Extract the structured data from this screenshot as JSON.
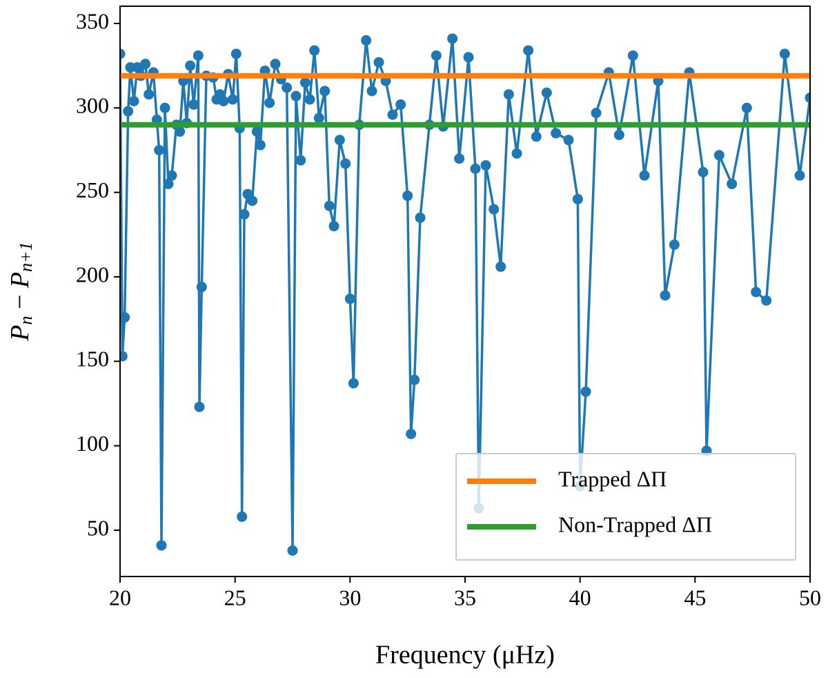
{
  "chart_data": {
    "type": "line",
    "xlabel": "Frequency (μHz)",
    "ylabel_parts": [
      "P",
      "n",
      " − ",
      "P",
      "n+1"
    ],
    "xlim": [
      20,
      50
    ],
    "ylim": [
      22.6,
      360.2
    ],
    "xticks": [
      20,
      25,
      30,
      35,
      40,
      45,
      50
    ],
    "yticks": [
      50,
      100,
      150,
      200,
      250,
      300,
      350
    ],
    "legend": "lower right",
    "x": [
      20.0,
      20.1,
      20.2,
      20.35,
      20.45,
      20.6,
      20.75,
      20.9,
      21.1,
      21.25,
      21.45,
      21.6,
      21.7,
      21.8,
      21.95,
      22.1,
      22.25,
      22.45,
      22.6,
      22.75,
      22.9,
      23.05,
      23.2,
      23.4,
      23.45,
      23.55,
      23.75,
      24.05,
      24.2,
      24.35,
      24.5,
      24.7,
      24.9,
      25.05,
      25.2,
      25.3,
      25.4,
      25.55,
      25.75,
      25.95,
      26.1,
      26.3,
      26.5,
      26.75,
      27.0,
      27.25,
      27.5,
      27.65,
      27.85,
      28.05,
      28.25,
      28.45,
      28.65,
      28.9,
      29.1,
      29.3,
      29.55,
      29.8,
      30.0,
      30.15,
      30.4,
      30.7,
      30.95,
      31.25,
      31.55,
      31.85,
      32.2,
      32.5,
      32.65,
      32.8,
      33.05,
      33.45,
      33.75,
      34.05,
      34.45,
      34.75,
      35.15,
      35.45,
      35.6,
      35.9,
      36.25,
      36.55,
      36.9,
      37.25,
      37.75,
      38.1,
      38.55,
      38.95,
      39.5,
      39.9,
      40.0,
      40.25,
      40.7,
      41.25,
      41.7,
      42.3,
      42.8,
      43.4,
      43.7,
      44.1,
      44.75,
      45.35,
      45.5,
      46.05,
      46.6,
      47.25,
      47.65,
      48.1,
      48.9,
      49.55,
      50.0
    ],
    "series": [
      {
        "color": "#1f77b4",
        "values": [
          332,
          153,
          176,
          298,
          324,
          304,
          324,
          319,
          326,
          308,
          321,
          293,
          275,
          41,
          300,
          255,
          260,
          290,
          286,
          316,
          291,
          325,
          302,
          331,
          123,
          194,
          319,
          318,
          305,
          308,
          304,
          320,
          305,
          332,
          288,
          58,
          237,
          249,
          245,
          286,
          278,
          322,
          303,
          326,
          317,
          312,
          38,
          307,
          269,
          315,
          305,
          334,
          294,
          310,
          242,
          230,
          281,
          267,
          187,
          137,
          290,
          340,
          310,
          327,
          316,
          296,
          302,
          248,
          107,
          139,
          235,
          290,
          331,
          289,
          341,
          270,
          330,
          264,
          63,
          266,
          240,
          206,
          308,
          273,
          334,
          283,
          309,
          285,
          281,
          246,
          76,
          132,
          297,
          321,
          284,
          331,
          260,
          316,
          189,
          219,
          321,
          262,
          97,
          272,
          255,
          300,
          191,
          186,
          332,
          260,
          306
        ]
      }
    ],
    "hlines": [
      {
        "name": "Trapped ΔΠ",
        "color": "#ff7f0e",
        "value": 319
      },
      {
        "name": "Non-Trapped ΔΠ",
        "color": "#2ca02c",
        "value": 290
      }
    ]
  }
}
